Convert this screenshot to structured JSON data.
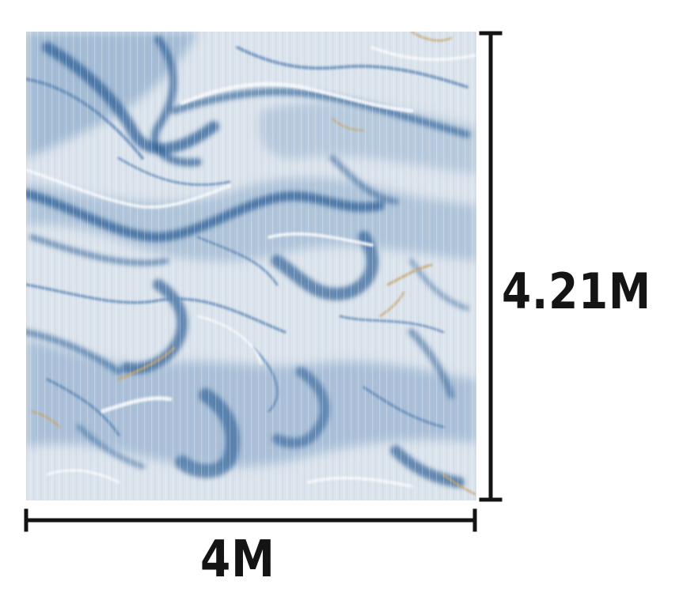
{
  "figure": {
    "image_description_name": "marble-texture",
    "height_label": "4.21M",
    "width_label": "4M",
    "colors": {
      "marble_base": "#dbe3ec",
      "vein_blue_dark": "#2d5f97",
      "vein_blue_mid": "#5b85b5",
      "vein_blue_light": "#9bb6d2",
      "vein_gold": "#c9a56c",
      "vein_white": "#f6f8fa",
      "dimension_line": "#141414"
    }
  }
}
